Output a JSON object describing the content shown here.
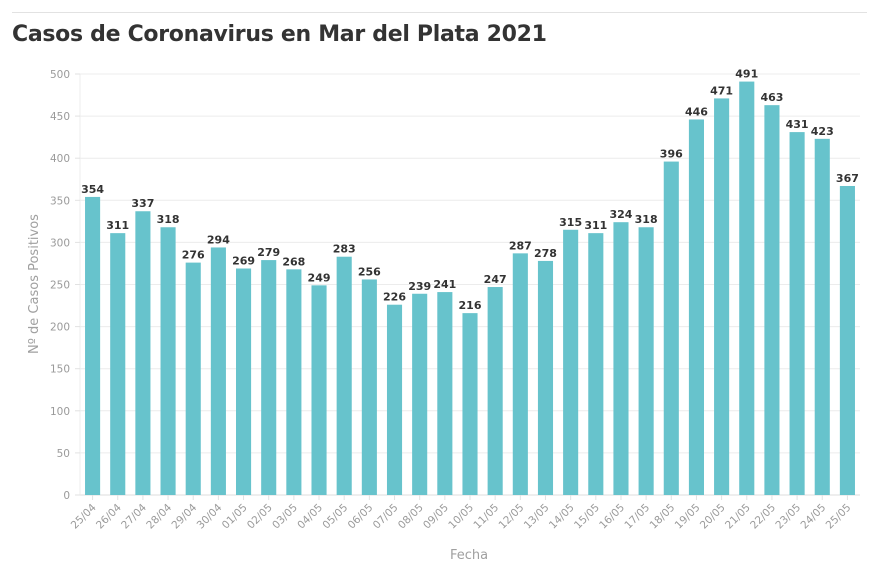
{
  "chart_data": {
    "type": "bar",
    "title": "Casos de Coronavirus en Mar del Plata 2021",
    "xlabel": "Fecha",
    "ylabel": "Nº de Casos Positivos",
    "ylim": [
      0,
      500
    ],
    "yticks": [
      0,
      50,
      100,
      150,
      200,
      250,
      300,
      350,
      400,
      450,
      500
    ],
    "grid": true,
    "bar_color": "#67c3cc",
    "categories": [
      "25/04",
      "26/04",
      "27/04",
      "28/04",
      "29/04",
      "30/04",
      "01/05",
      "02/05",
      "03/05",
      "04/05",
      "05/05",
      "06/05",
      "07/05",
      "08/05",
      "09/05",
      "10/05",
      "11/05",
      "12/05",
      "13/05",
      "14/05",
      "15/05",
      "16/05",
      "17/05",
      "18/05",
      "19/05",
      "20/05",
      "21/05",
      "22/05",
      "23/05",
      "24/05",
      "25/05"
    ],
    "values": [
      354,
      311,
      337,
      318,
      276,
      294,
      269,
      279,
      268,
      249,
      283,
      256,
      226,
      239,
      241,
      216,
      247,
      287,
      278,
      315,
      311,
      324,
      318,
      396,
      446,
      471,
      491,
      463,
      431,
      423,
      367
    ]
  }
}
